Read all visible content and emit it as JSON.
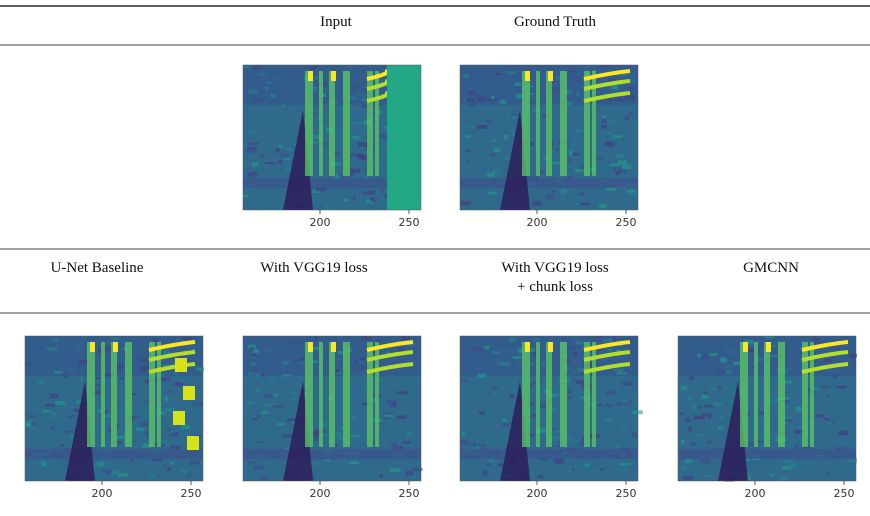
{
  "rows": [
    {
      "headers": [
        null,
        [
          "Input"
        ],
        [
          "Ground Truth"
        ],
        null
      ],
      "panels": [
        null,
        {
          "ticks": [
            "200",
            "250"
          ]
        },
        {
          "ticks": [
            "200",
            "250"
          ]
        },
        null
      ]
    },
    {
      "headers": [
        [
          "U-Net Baseline"
        ],
        [
          "With VGG19 loss"
        ],
        [
          "With VGG19 loss",
          "+ chunk loss"
        ],
        [
          "GMCNN"
        ]
      ],
      "panels": [
        {
          "ticks": [
            "200",
            "250"
          ]
        },
        {
          "ticks": [
            "200",
            "250"
          ]
        },
        {
          "ticks": [
            "200",
            "250"
          ]
        },
        {
          "ticks": [
            "200",
            "250"
          ]
        }
      ]
    }
  ]
}
